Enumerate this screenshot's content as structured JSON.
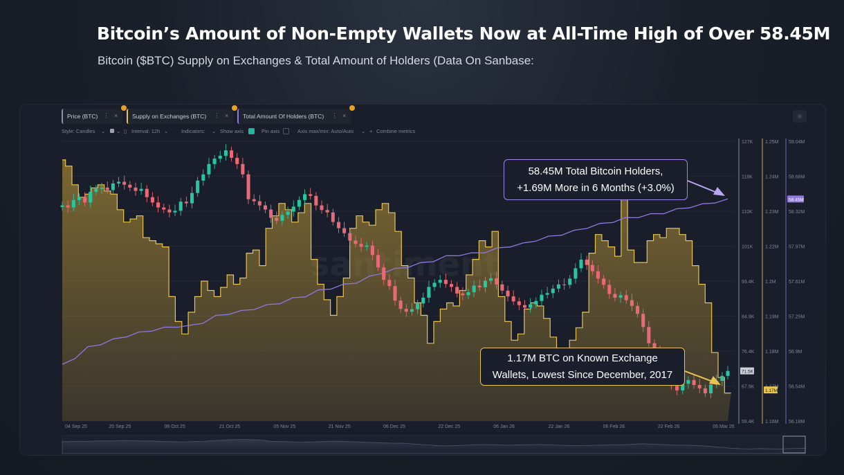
{
  "header": {
    "title": "Bitcoin’s Amount of Non-Empty Wallets Now at All-Time High of Over 58.45M",
    "subtitle": "Bitcoin ($BTC) Supply on Exchanges & Total Amount of Holders (Data On Sanbase:"
  },
  "tabs": [
    {
      "label": "Price (BTC)",
      "color": "#8c93a3"
    },
    {
      "label": "Supply on Exchanges (BTC)",
      "color": "#e8c452"
    },
    {
      "label": "Total Amount Of Holders (BTC)",
      "color": "#8f78e0"
    }
  ],
  "settings": {
    "style": "Style: Candles",
    "interval": "Interval: 12h",
    "indicators": "Indicators:",
    "show_axis": "Show axis",
    "pin_axis": "Pin axis",
    "axis_minmax": "Axis max/min: Auto/Auto",
    "combine": "Combine metrics"
  },
  "callouts": {
    "holders_line1": "58.45M Total Bitcoin Holders,",
    "holders_line2": "+1.69M More in 6 Months (+3.0%)",
    "supply_line1": "1.17M BTC on Known Exchange",
    "supply_line2": "Wallets, Lowest Since December, 2017"
  },
  "watermark": "santiment",
  "colors": {
    "price_up": "#26c6a0",
    "price_down": "#e86a78",
    "supply": "#e8c452",
    "holders": "#8f78e0",
    "callout_holders_border": "#9d86ea",
    "callout_supply_border": "#e8c452"
  },
  "chart_data": {
    "type": "line",
    "x_ticks": [
      "04 Sep 25",
      "20 Sep 25",
      "06 Oct 25",
      "21 Oct 25",
      "05 Nov 25",
      "21 Nov 25",
      "06 Dec 25",
      "22 Dec 25",
      "06 Jan 26",
      "22 Jan 26",
      "06 Feb 26",
      "22 Feb 26",
      "05 Mar 26"
    ],
    "axes": {
      "price": {
        "ticks": [
          "127K",
          "118K",
          "110K",
          "101K",
          "93.4K",
          "84.9K",
          "76.4K",
          "67.9K",
          "59.4K"
        ],
        "ylim": [
          59400,
          127000
        ],
        "current": "71.5K"
      },
      "supply": {
        "ticks": [
          "1.25M",
          "1.24M",
          "1.23M",
          "1.22M",
          "1.2M",
          "1.19M",
          "1.18M",
          "1.17M",
          "1.16M"
        ],
        "ylim": [
          1160000,
          1250000
        ],
        "current": "1.17M"
      },
      "holders": {
        "ticks": [
          "59.04M",
          "58.68M",
          "58.32M",
          "57.97M",
          "57.61M",
          "57.25M",
          "56.9M",
          "56.54M",
          "56.18M"
        ],
        "ylim": [
          56180000,
          59040000
        ],
        "current": "58.45M"
      }
    },
    "series": [
      {
        "name": "Price (BTC)",
        "type": "candles",
        "axis": "price",
        "values": [
          111500,
          111000,
          112800,
          113500,
          112200,
          114800,
          115500,
          115800,
          115200,
          116800,
          117200,
          116500,
          115800,
          115000,
          115500,
          113500,
          112200,
          111000,
          110500,
          109800,
          110200,
          112400,
          112000,
          114500,
          117500,
          119000,
          121500,
          122800,
          123500,
          124800,
          123000,
          121500,
          119000,
          113000,
          112500,
          111500,
          110500,
          108500,
          107800,
          109200,
          110000,
          111200,
          112800,
          114200,
          113800,
          111500,
          110400,
          109800,
          107500,
          106000,
          104800,
          103000,
          102200,
          101500,
          101800,
          99500,
          96500,
          93500,
          92000,
          88500,
          86500,
          85800,
          86400,
          87800,
          89200,
          91800,
          92800,
          93500,
          92500,
          91800,
          90200,
          89800,
          90500,
          92100,
          91700,
          93300,
          93900,
          92400,
          90900,
          89500,
          88300,
          87400,
          86800,
          87600,
          88400,
          89900,
          90300,
          91400,
          92400,
          92300,
          93800,
          96300,
          98400,
          97100,
          95600,
          93800,
          92300,
          90100,
          89200,
          89800,
          88600,
          87200,
          85300,
          82100,
          78200,
          76400,
          71800,
          69600,
          67900,
          66800,
          68400,
          69300,
          68100,
          67300,
          66100,
          68200,
          69100,
          70300,
          71500
        ]
      },
      {
        "name": "Supply on Exchanges (BTC)",
        "type": "area",
        "axis": "supply",
        "values": [
          1244000,
          1242000,
          1236000,
          1232000,
          1233000,
          1235000,
          1236000,
          1234000,
          1233000,
          1228000,
          1224000,
          1225000,
          1226000,
          1219000,
          1218000,
          1217000,
          1216000,
          1200000,
          1192000,
          1188000,
          1195000,
          1200000,
          1205000,
          1202000,
          1200000,
          1203000,
          1207000,
          1204000,
          1206000,
          1214000,
          1215000,
          1210000,
          1222000,
          1226000,
          1230000,
          1228000,
          1224000,
          1227000,
          1230000,
          1212000,
          1204000,
          1199000,
          1194000,
          1200000,
          1206000,
          1222000,
          1226000,
          1224000,
          1223000,
          1228000,
          1230000,
          1227000,
          1221000,
          1210000,
          1206000,
          1198000,
          1194000,
          1185000,
          1192000,
          1196000,
          1198000,
          1197000,
          1202000,
          1207000,
          1212000,
          1218000,
          1216000,
          1221000,
          1200000,
          1192000,
          1186000,
          1188000,
          1196000,
          1198000,
          1197000,
          1193000,
          1187000,
          1176000,
          1178000,
          1186000,
          1190000,
          1195000,
          1214000,
          1220000,
          1218000,
          1216000,
          1213000,
          1232000,
          1215000,
          1211000,
          1211000,
          1218000,
          1220000,
          1219000,
          1222000,
          1222000,
          1220000,
          1218000,
          1210000,
          1204000,
          1198000,
          1182000,
          1174000,
          1169000
        ]
      },
      {
        "name": "Total Amount Of Holders (BTC)",
        "type": "line",
        "axis": "holders",
        "values": [
          56760000,
          56840000,
          56940000,
          56980000,
          57020000,
          57060000,
          57090000,
          57120000,
          57140000,
          57160000,
          57160000,
          57200000,
          57260000,
          57290000,
          57310000,
          57340000,
          57370000,
          57400000,
          57440000,
          57470000,
          57520000,
          57550000,
          57580000,
          57610000,
          57660000,
          57710000,
          57740000,
          57770000,
          57800000,
          57830000,
          57870000,
          57890000,
          57900000,
          57920000,
          57950000,
          57980000,
          58000000,
          58040000,
          58070000,
          58100000,
          58130000,
          58170000,
          58200000,
          58230000,
          58260000,
          58280000,
          58300000,
          58320000,
          58350000,
          58380000,
          58400000,
          58430000,
          58450000
        ]
      }
    ]
  }
}
